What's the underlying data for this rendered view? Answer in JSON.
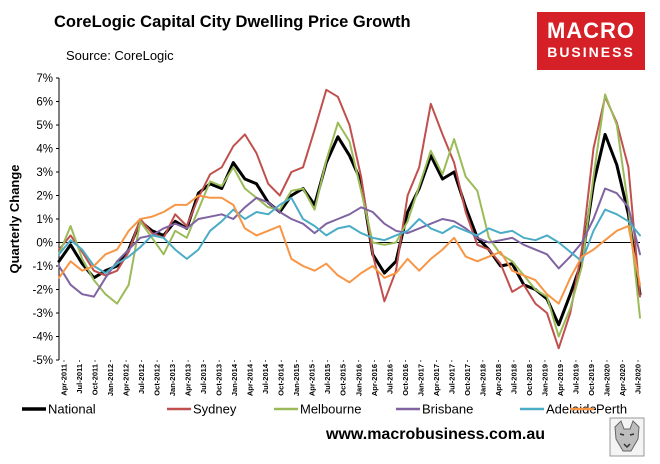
{
  "chart_data": {
    "type": "line",
    "title": "CoreLogic Capital City Dwelling Price Growth",
    "subtitle": "Source: CoreLogic",
    "ylabel": "Quarterly Change",
    "xlabel": "",
    "ylim": [
      -5,
      7
    ],
    "yticks": [
      "-5%",
      "-4%",
      "-3%",
      "-2%",
      "-1%",
      "0%",
      "1%",
      "2%",
      "3%",
      "4%",
      "5%",
      "6%",
      "7%"
    ],
    "x_start": "Apr-2011",
    "x_end": "Jul-2020",
    "xtick_labels": [
      "Apr-2011",
      "Jul-2011",
      "Oct-2011",
      "Jan-2012",
      "Apr-2012",
      "Jul-2012",
      "Oct-2012",
      "Jan-2013",
      "Apr-2013",
      "Jul-2013",
      "Oct-2013",
      "Jan-2014",
      "Apr-2014",
      "Jul-2014",
      "Oct-2014",
      "Jan-2015",
      "Apr-2015",
      "Jul-2015",
      "Oct-2015",
      "Jan-2016",
      "Apr-2016",
      "Jul-2016",
      "Oct-2016",
      "Jan-2017",
      "Apr-2017",
      "Jul-2017",
      "Oct-2017",
      "Jan-2018",
      "Apr-2018",
      "Jul-2018",
      "Oct-2018",
      "Jan-2019",
      "Apr-2019",
      "Jul-2019",
      "Oct-2019",
      "Jan-2020",
      "Apr-2020",
      "Jul-2020"
    ],
    "series": [
      {
        "name": "National",
        "color": "#000000",
        "width": 3,
        "points": [
          [
            0,
            -0.8
          ],
          [
            2,
            -0.1
          ],
          [
            4,
            -0.9
          ],
          [
            6,
            -1.5
          ],
          [
            8,
            -1.2
          ],
          [
            10,
            -1.0
          ],
          [
            12,
            -0.3
          ],
          [
            14,
            0.9
          ],
          [
            16,
            0.5
          ],
          [
            18,
            0.3
          ],
          [
            20,
            0.9
          ],
          [
            22,
            0.6
          ],
          [
            24,
            2.1
          ],
          [
            26,
            2.5
          ],
          [
            28,
            2.3
          ],
          [
            30,
            3.4
          ],
          [
            32,
            2.7
          ],
          [
            34,
            2.5
          ],
          [
            36,
            1.7
          ],
          [
            38,
            1.3
          ],
          [
            40,
            2.0
          ],
          [
            42,
            2.3
          ],
          [
            44,
            1.6
          ],
          [
            46,
            3.4
          ],
          [
            48,
            4.5
          ],
          [
            50,
            3.7
          ],
          [
            52,
            2.6
          ],
          [
            54,
            -0.5
          ],
          [
            56,
            -1.3
          ],
          [
            58,
            -0.8
          ],
          [
            60,
            1.3
          ],
          [
            62,
            2.3
          ],
          [
            64,
            3.7
          ],
          [
            66,
            2.7
          ],
          [
            68,
            3.0
          ],
          [
            70,
            1.5
          ],
          [
            72,
            0.2
          ],
          [
            74,
            -0.3
          ],
          [
            76,
            -1.0
          ],
          [
            78,
            -0.9
          ],
          [
            80,
            -1.8
          ],
          [
            82,
            -2.0
          ],
          [
            84,
            -2.4
          ],
          [
            86,
            -3.5
          ],
          [
            88,
            -2.2
          ],
          [
            90,
            -0.8
          ],
          [
            92,
            2.5
          ],
          [
            94,
            4.6
          ],
          [
            96,
            3.3
          ],
          [
            98,
            1.2
          ],
          [
            100,
            -2.2
          ]
        ]
      },
      {
        "name": "Sydney",
        "color": "#c0504d",
        "width": 2,
        "points": [
          [
            0,
            -0.3
          ],
          [
            2,
            0.3
          ],
          [
            4,
            -0.4
          ],
          [
            6,
            -1.2
          ],
          [
            8,
            -1.4
          ],
          [
            10,
            -1.2
          ],
          [
            12,
            -0.4
          ],
          [
            14,
            1.0
          ],
          [
            16,
            0.4
          ],
          [
            18,
            0.2
          ],
          [
            20,
            1.2
          ],
          [
            22,
            0.7
          ],
          [
            24,
            1.9
          ],
          [
            26,
            2.9
          ],
          [
            28,
            3.2
          ],
          [
            30,
            4.1
          ],
          [
            32,
            4.6
          ],
          [
            34,
            3.8
          ],
          [
            36,
            2.5
          ],
          [
            38,
            2.0
          ],
          [
            40,
            3.0
          ],
          [
            42,
            3.2
          ],
          [
            44,
            4.8
          ],
          [
            46,
            6.5
          ],
          [
            48,
            6.2
          ],
          [
            50,
            5.0
          ],
          [
            52,
            2.8
          ],
          [
            54,
            -0.5
          ],
          [
            56,
            -2.5
          ],
          [
            58,
            -1.2
          ],
          [
            60,
            2.0
          ],
          [
            62,
            3.2
          ],
          [
            64,
            5.9
          ],
          [
            66,
            4.6
          ],
          [
            68,
            3.4
          ],
          [
            70,
            1.3
          ],
          [
            72,
            -0.1
          ],
          [
            74,
            -0.3
          ],
          [
            76,
            -0.9
          ],
          [
            78,
            -2.1
          ],
          [
            80,
            -1.8
          ],
          [
            82,
            -2.6
          ],
          [
            84,
            -3.0
          ],
          [
            86,
            -4.5
          ],
          [
            88,
            -3.0
          ],
          [
            90,
            -0.3
          ],
          [
            92,
            4.0
          ],
          [
            94,
            6.2
          ],
          [
            96,
            5.1
          ],
          [
            98,
            3.2
          ],
          [
            100,
            -2.3
          ]
        ]
      },
      {
        "name": "Melbourne",
        "color": "#9bbb59",
        "width": 2,
        "points": [
          [
            0,
            -0.5
          ],
          [
            2,
            0.7
          ],
          [
            4,
            -0.7
          ],
          [
            6,
            -1.6
          ],
          [
            8,
            -2.2
          ],
          [
            10,
            -2.6
          ],
          [
            12,
            -1.8
          ],
          [
            14,
            0.9
          ],
          [
            16,
            0.2
          ],
          [
            18,
            -0.5
          ],
          [
            20,
            0.5
          ],
          [
            22,
            0.2
          ],
          [
            24,
            1.4
          ],
          [
            26,
            2.6
          ],
          [
            28,
            2.4
          ],
          [
            30,
            3.2
          ],
          [
            32,
            2.3
          ],
          [
            34,
            1.9
          ],
          [
            36,
            1.5
          ],
          [
            38,
            1.4
          ],
          [
            40,
            2.2
          ],
          [
            42,
            2.3
          ],
          [
            44,
            1.4
          ],
          [
            46,
            3.5
          ],
          [
            48,
            5.1
          ],
          [
            50,
            4.3
          ],
          [
            52,
            2.2
          ],
          [
            54,
            0.0
          ],
          [
            56,
            -0.1
          ],
          [
            58,
            0.0
          ],
          [
            60,
            0.9
          ],
          [
            62,
            2.4
          ],
          [
            64,
            3.9
          ],
          [
            66,
            2.9
          ],
          [
            68,
            4.4
          ],
          [
            70,
            2.8
          ],
          [
            72,
            2.2
          ],
          [
            74,
            0.2
          ],
          [
            76,
            -0.5
          ],
          [
            78,
            -0.8
          ],
          [
            80,
            -1.4
          ],
          [
            82,
            -2.0
          ],
          [
            84,
            -2.3
          ],
          [
            86,
            -4.0
          ],
          [
            88,
            -2.8
          ],
          [
            90,
            -1.0
          ],
          [
            92,
            2.8
          ],
          [
            94,
            6.3
          ],
          [
            96,
            5.0
          ],
          [
            98,
            1.5
          ],
          [
            100,
            -3.2
          ]
        ]
      },
      {
        "name": "Brisbane",
        "color": "#8064a2",
        "width": 2,
        "points": [
          [
            0,
            -1.0
          ],
          [
            2,
            -1.8
          ],
          [
            4,
            -2.2
          ],
          [
            6,
            -2.3
          ],
          [
            8,
            -1.5
          ],
          [
            10,
            -0.8
          ],
          [
            12,
            -0.3
          ],
          [
            14,
            0.2
          ],
          [
            16,
            0.3
          ],
          [
            18,
            0.6
          ],
          [
            20,
            0.8
          ],
          [
            22,
            0.6
          ],
          [
            24,
            1.0
          ],
          [
            26,
            1.1
          ],
          [
            28,
            1.2
          ],
          [
            30,
            1.0
          ],
          [
            32,
            1.5
          ],
          [
            34,
            1.9
          ],
          [
            36,
            1.7
          ],
          [
            38,
            1.3
          ],
          [
            40,
            1.0
          ],
          [
            42,
            0.8
          ],
          [
            44,
            0.4
          ],
          [
            46,
            0.8
          ],
          [
            48,
            1.0
          ],
          [
            50,
            1.2
          ],
          [
            52,
            1.5
          ],
          [
            54,
            1.3
          ],
          [
            56,
            0.8
          ],
          [
            58,
            0.5
          ],
          [
            60,
            0.4
          ],
          [
            62,
            0.6
          ],
          [
            64,
            0.8
          ],
          [
            66,
            1.0
          ],
          [
            68,
            0.9
          ],
          [
            70,
            0.6
          ],
          [
            72,
            0.2
          ],
          [
            74,
            0.0
          ],
          [
            76,
            0.1
          ],
          [
            78,
            0.2
          ],
          [
            80,
            -0.1
          ],
          [
            82,
            -0.3
          ],
          [
            84,
            -0.5
          ],
          [
            86,
            -1.1
          ],
          [
            88,
            -0.6
          ],
          [
            90,
            0.0
          ],
          [
            92,
            1.0
          ],
          [
            94,
            2.3
          ],
          [
            96,
            2.1
          ],
          [
            98,
            1.5
          ],
          [
            100,
            -0.5
          ]
        ]
      },
      {
        "name": "Adelaide",
        "color": "#4bacc6",
        "width": 2,
        "points": [
          [
            0,
            -0.5
          ],
          [
            2,
            0.1
          ],
          [
            4,
            -0.3
          ],
          [
            6,
            -1.0
          ],
          [
            8,
            -1.3
          ],
          [
            10,
            -0.9
          ],
          [
            12,
            -0.6
          ],
          [
            14,
            -0.2
          ],
          [
            16,
            0.3
          ],
          [
            18,
            0.2
          ],
          [
            20,
            -0.3
          ],
          [
            22,
            -0.7
          ],
          [
            24,
            -0.3
          ],
          [
            26,
            0.5
          ],
          [
            28,
            0.9
          ],
          [
            30,
            1.4
          ],
          [
            32,
            1.0
          ],
          [
            34,
            1.3
          ],
          [
            36,
            1.2
          ],
          [
            38,
            1.6
          ],
          [
            40,
            1.9
          ],
          [
            42,
            1.0
          ],
          [
            44,
            0.7
          ],
          [
            46,
            0.3
          ],
          [
            48,
            0.6
          ],
          [
            50,
            0.7
          ],
          [
            52,
            0.4
          ],
          [
            54,
            0.2
          ],
          [
            56,
            0.1
          ],
          [
            58,
            0.3
          ],
          [
            60,
            0.5
          ],
          [
            62,
            1.0
          ],
          [
            64,
            0.6
          ],
          [
            66,
            0.4
          ],
          [
            68,
            0.7
          ],
          [
            70,
            0.5
          ],
          [
            72,
            0.3
          ],
          [
            74,
            0.6
          ],
          [
            76,
            0.4
          ],
          [
            78,
            0.5
          ],
          [
            80,
            0.2
          ],
          [
            82,
            0.1
          ],
          [
            84,
            0.3
          ],
          [
            86,
            0.0
          ],
          [
            88,
            -0.4
          ],
          [
            90,
            -0.8
          ],
          [
            92,
            0.5
          ],
          [
            94,
            1.4
          ],
          [
            96,
            1.2
          ],
          [
            98,
            0.9
          ],
          [
            100,
            0.3
          ]
        ]
      },
      {
        "name": "Perth",
        "color": "#f79646",
        "width": 2,
        "points": [
          [
            0,
            -1.5
          ],
          [
            2,
            -0.8
          ],
          [
            4,
            -1.2
          ],
          [
            6,
            -1.0
          ],
          [
            8,
            -0.5
          ],
          [
            10,
            -0.3
          ],
          [
            12,
            0.5
          ],
          [
            14,
            1.0
          ],
          [
            16,
            1.1
          ],
          [
            18,
            1.3
          ],
          [
            20,
            1.6
          ],
          [
            22,
            1.6
          ],
          [
            24,
            2.0
          ],
          [
            26,
            1.9
          ],
          [
            28,
            1.9
          ],
          [
            30,
            1.6
          ],
          [
            32,
            0.6
          ],
          [
            34,
            0.3
          ],
          [
            36,
            0.5
          ],
          [
            38,
            0.7
          ],
          [
            40,
            -0.7
          ],
          [
            42,
            -1.0
          ],
          [
            44,
            -1.2
          ],
          [
            46,
            -0.9
          ],
          [
            48,
            -1.4
          ],
          [
            50,
            -1.7
          ],
          [
            52,
            -1.3
          ],
          [
            54,
            -1.0
          ],
          [
            56,
            -1.5
          ],
          [
            58,
            -1.3
          ],
          [
            60,
            -0.7
          ],
          [
            62,
            -1.2
          ],
          [
            64,
            -0.7
          ],
          [
            66,
            -0.3
          ],
          [
            68,
            0.2
          ],
          [
            70,
            -0.6
          ],
          [
            72,
            -0.8
          ],
          [
            74,
            -0.6
          ],
          [
            76,
            -0.4
          ],
          [
            78,
            -1.2
          ],
          [
            80,
            -1.4
          ],
          [
            82,
            -1.6
          ],
          [
            84,
            -2.2
          ],
          [
            86,
            -2.6
          ],
          [
            88,
            -1.5
          ],
          [
            90,
            -0.6
          ],
          [
            92,
            -0.3
          ],
          [
            94,
            0.1
          ],
          [
            96,
            0.5
          ],
          [
            98,
            0.7
          ],
          [
            100,
            -1.8
          ]
        ]
      }
    ]
  },
  "website": "www.macrobusiness.com.au",
  "logo": {
    "line1": "MACRO",
    "line2": "BUSINESS"
  }
}
